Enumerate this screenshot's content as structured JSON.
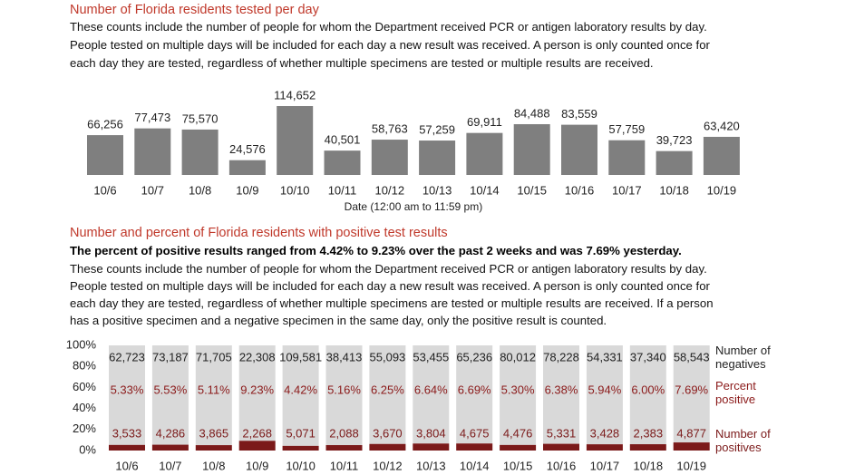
{
  "chart_data": [
    {
      "type": "bar",
      "title": "Number of Florida residents tested per day",
      "description": [
        "These counts include the number of people for whom the Department received PCR or antigen laboratory results by day.",
        "People tested on multiple days will be included for each day a new result was received. A person is only counted once for",
        "each day they are tested, regardless of whether multiple specimens are tested or multiple results are received."
      ],
      "xlabel": "Date (12:00 am to 11:59 pm)",
      "categories": [
        "10/6",
        "10/7",
        "10/8",
        "10/9",
        "10/10",
        "10/11",
        "10/12",
        "10/13",
        "10/14",
        "10/15",
        "10/16",
        "10/17",
        "10/18",
        "10/19"
      ],
      "values": [
        66256,
        77473,
        75570,
        24576,
        114652,
        40501,
        58763,
        57259,
        69911,
        84488,
        83559,
        57759,
        39723,
        63420
      ],
      "value_labels": [
        "66,256",
        "77,473",
        "75,570",
        "24,576",
        "114,652",
        "40,501",
        "58,763",
        "57,259",
        "69,911",
        "84,488",
        "83,559",
        "57,759",
        "39,723",
        "63,420"
      ],
      "color": "#7f7f7f"
    },
    {
      "type": "stacked_percent_bar",
      "title": "Number and percent of Florida residents with positive test results",
      "subtitle": "The percent of positive results ranged from 4.42% to 9.23% over the past 2 weeks and was 7.69% yesterday.",
      "description": [
        "These counts include the number of people for whom the Department received PCR or antigen laboratory results by day.",
        "People tested on multiple days will be included for each day a new result was received. A person is only counted once for",
        "each day they are tested, regardless of whether multiple specimens are tested or multiple results are received. If a person",
        "has a positive specimen and a negative specimen in the same day, only the positive result is counted."
      ],
      "categories": [
        "10/6",
        "10/7",
        "10/8",
        "10/9",
        "10/10",
        "10/11",
        "10/12",
        "10/13",
        "10/14",
        "10/15",
        "10/16",
        "10/17",
        "10/18",
        "10/19"
      ],
      "ylim": [
        0,
        100
      ],
      "yticks": [
        {
          "value": 0,
          "label": "0%"
        },
        {
          "value": 20,
          "label": "20%"
        },
        {
          "value": 40,
          "label": "40%"
        },
        {
          "value": 60,
          "label": "60%"
        },
        {
          "value": 80,
          "label": "80%"
        },
        {
          "value": 100,
          "label": "100%"
        }
      ],
      "series": [
        {
          "name": "Number of negatives",
          "color": "#d9d9d9",
          "values": [
            62723,
            73187,
            71705,
            22308,
            109581,
            38413,
            55093,
            53455,
            65236,
            80012,
            78228,
            54331,
            37340,
            58543
          ],
          "value_labels": [
            "62,723",
            "73,187",
            "71,705",
            "22,308",
            "109,581",
            "38,413",
            "55,093",
            "53,455",
            "65,236",
            "80,012",
            "78,228",
            "54,331",
            "37,340",
            "58,543"
          ]
        },
        {
          "name": "Percent positive",
          "color": "#8b1a1a",
          "values": [
            5.33,
            5.53,
            5.11,
            9.23,
            4.42,
            5.16,
            6.25,
            6.64,
            6.69,
            5.3,
            6.38,
            5.94,
            6.0,
            7.69
          ],
          "value_labels": [
            "5.33%",
            "5.53%",
            "5.11%",
            "9.23%",
            "4.42%",
            "5.16%",
            "6.25%",
            "6.64%",
            "6.69%",
            "5.30%",
            "6.38%",
            "5.94%",
            "6.00%",
            "7.69%"
          ]
        },
        {
          "name": "Number of positives",
          "color": "#7b1a1a",
          "values": [
            3533,
            4286,
            3865,
            2268,
            5071,
            2088,
            3670,
            3804,
            4675,
            4476,
            5331,
            3428,
            2383,
            4877
          ],
          "value_labels": [
            "3,533",
            "4,286",
            "3,865",
            "2,268",
            "5,071",
            "2,088",
            "3,670",
            "3,804",
            "4,675",
            "4,476",
            "5,331",
            "3,428",
            "2,383",
            "4,877"
          ]
        }
      ]
    }
  ]
}
